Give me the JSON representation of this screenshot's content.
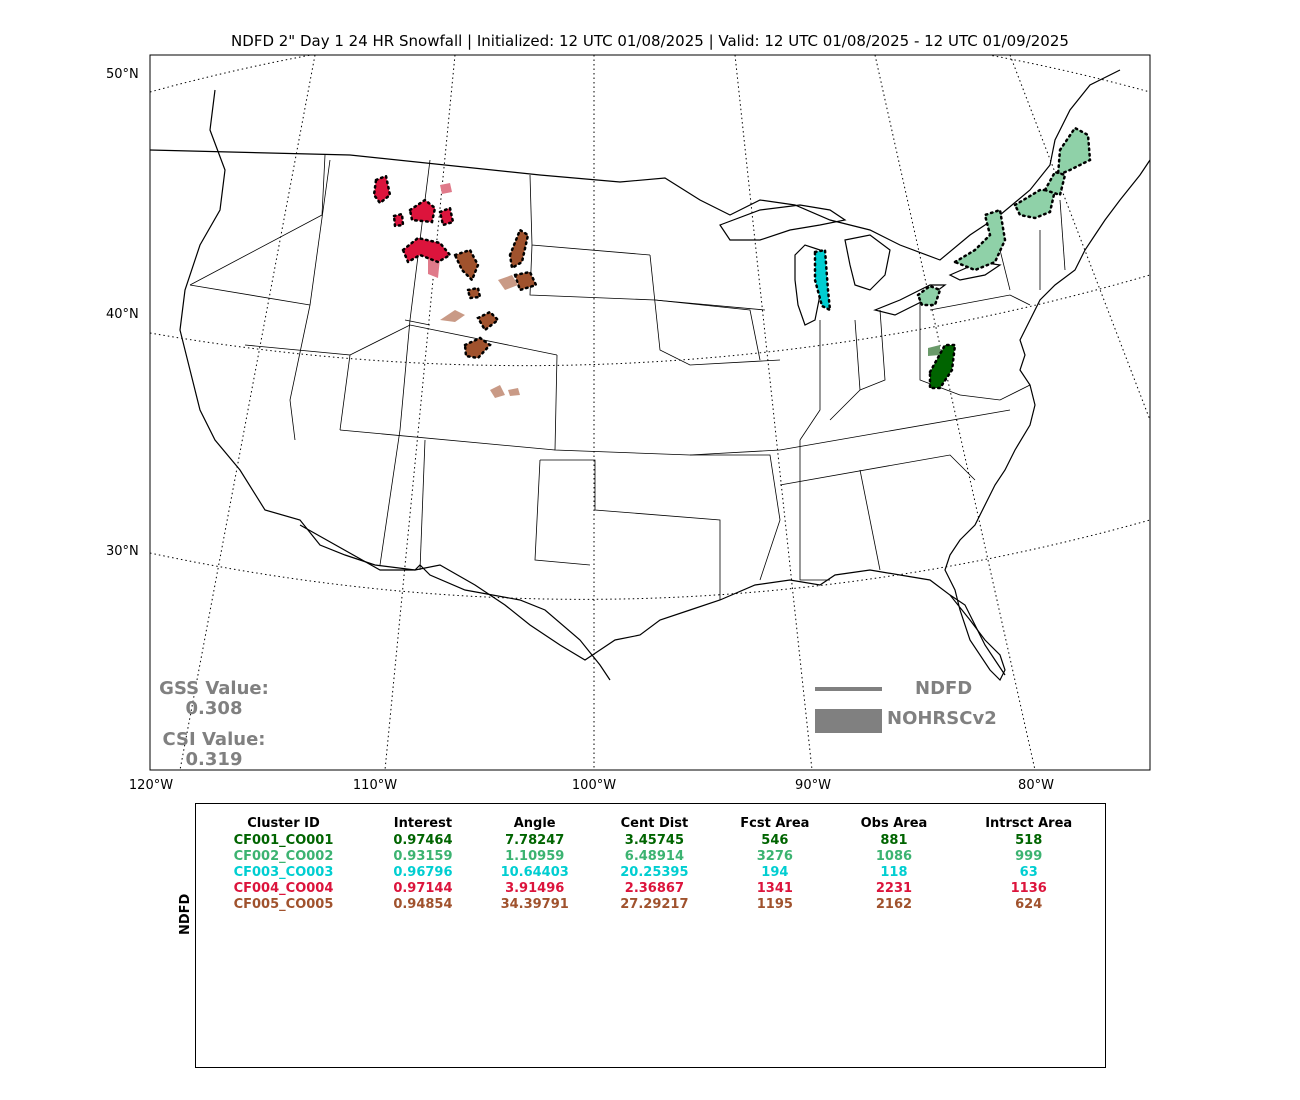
{
  "title": "NDFD 2\" Day 1 24 HR Snowfall | Initialized: 12 UTC 01/08/2025 | Valid: 12 UTC 01/08/2025 - 12 UTC 01/09/2025",
  "lat_labels": [
    "50°N",
    "40°N",
    "30°N"
  ],
  "lon_labels": [
    "120°W",
    "110°W",
    "100°W",
    "90°W",
    "80°W"
  ],
  "stats": {
    "gss_label": "GSS Value:",
    "gss_value": "0.308",
    "csi_label": "CSI Value:",
    "csi_value": "0.319"
  },
  "legend": {
    "forecast_label": "NDFD",
    "observed_label": "NOHRSCv2",
    "color": "#808080"
  },
  "table": {
    "side_label": "NDFD",
    "headers": [
      "Cluster ID",
      "Interest",
      "Angle",
      "Cent Dist",
      "Fcst Area",
      "Obs Area",
      "Intrsct Area"
    ],
    "rows": [
      {
        "color": "#006400",
        "cells": [
          "CF001_CO001",
          "0.97464",
          "7.78247",
          "3.45745",
          "546",
          "881",
          "518"
        ]
      },
      {
        "color": "#3cb371",
        "cells": [
          "CF002_CO002",
          "0.93159",
          "1.10959",
          "6.48914",
          "3276",
          "1086",
          "999"
        ]
      },
      {
        "color": "#00ced1",
        "cells": [
          "CF003_CO003",
          "0.96796",
          "10.64403",
          "20.25395",
          "194",
          "118",
          "63"
        ]
      },
      {
        "color": "#dc143c",
        "cells": [
          "CF004_CO004",
          "0.97144",
          "3.91496",
          "2.36867",
          "1341",
          "2231",
          "1136"
        ]
      },
      {
        "color": "#a0522d",
        "cells": [
          "CF005_CO005",
          "0.94854",
          "34.39791",
          "27.29217",
          "1195",
          "2162",
          "624"
        ]
      }
    ]
  },
  "clusters": [
    {
      "id": "CF001_CO001",
      "color": "#006400",
      "fill": "#006400",
      "region": "West Virginia / Virginia"
    },
    {
      "id": "CF002_CO002",
      "color": "#3cb371",
      "fill": "#8fd1a8",
      "region": "Ohio / New York / Maine"
    },
    {
      "id": "CF003_CO003",
      "color": "#00ced1",
      "fill": "#00ced1",
      "region": "Lake Michigan shore"
    },
    {
      "id": "CF004_CO004",
      "color": "#dc143c",
      "fill": "#e07a8a",
      "region": "Montana / Wyoming"
    },
    {
      "id": "CF005_CO005",
      "color": "#a0522d",
      "fill": "#c99a86",
      "region": "Wyoming / Colorado"
    }
  ]
}
